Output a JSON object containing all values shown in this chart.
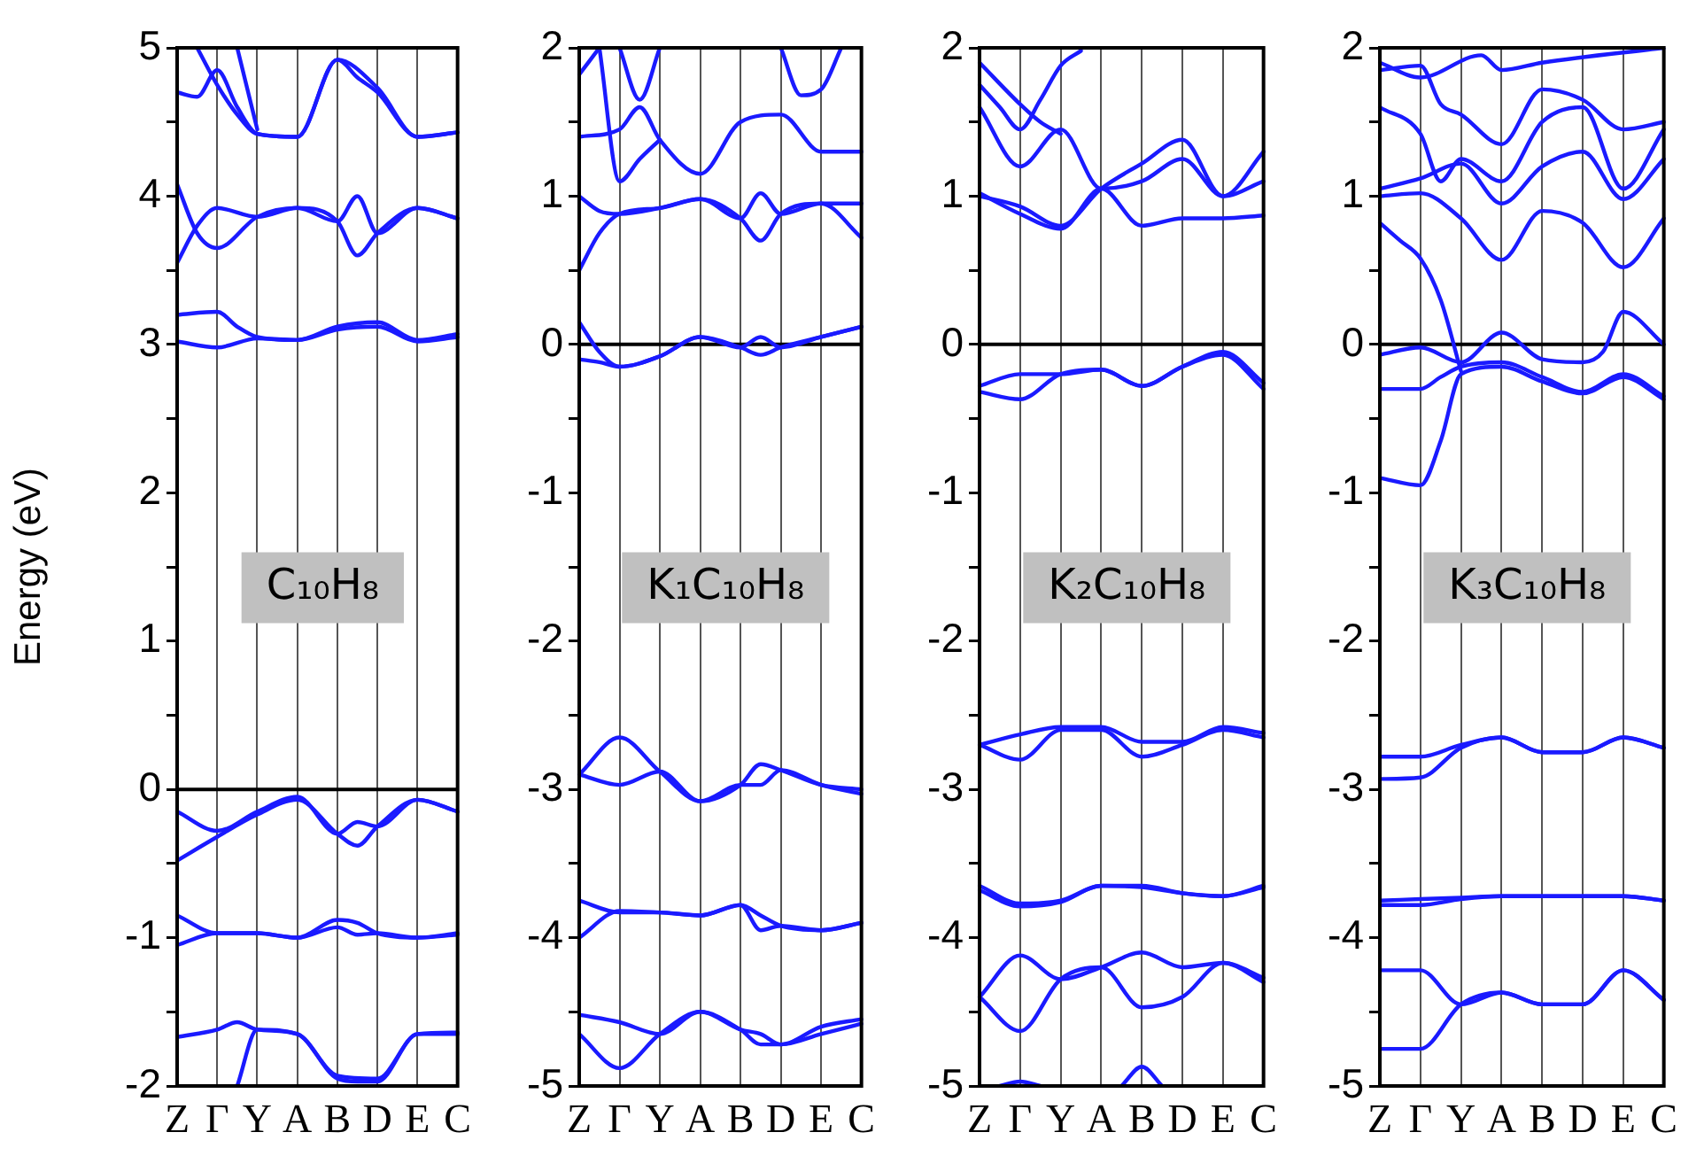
{
  "chart_data": [
    {
      "type": "line",
      "ylabel": "Energy (eV)",
      "annotations": [
        "C₁₀H₈"
      ],
      "categories": [
        "Z",
        null,
        "Γ",
        null,
        "Y",
        null,
        "A",
        null,
        "B",
        null,
        "D",
        null,
        "E",
        null,
        "C"
      ],
      "ylim": [
        -2,
        5
      ],
      "yticks": [
        -2,
        {
          "value": -1.5,
          "label": null
        },
        -1,
        {
          "value": -0.5,
          "label": null
        },
        0,
        {
          "value": 0.5,
          "label": null
        },
        1,
        {
          "value": 1.5,
          "label": null
        },
        2,
        {
          "value": 2.5,
          "label": null
        },
        3,
        {
          "value": 3.5,
          "label": null
        },
        4,
        {
          "value": 4.5,
          "label": null
        },
        5
      ],
      "grid": "x",
      "ref_lines": [
        {
          "axis": "y",
          "value": 0,
          "color": "#000000"
        }
      ],
      "series": [
        {
          "color": "#1a1aff",
          "values": [
            -0.15,
            null,
            -0.28,
            null,
            -0.15,
            null,
            -0.05,
            null,
            -0.3,
            -0.22,
            -0.25,
            null,
            -0.07,
            null,
            -0.15
          ]
        },
        {
          "color": "#1a1aff",
          "values": [
            -0.48,
            null,
            -0.32,
            null,
            -0.17,
            null,
            -0.07,
            null,
            -0.3,
            -0.38,
            -0.25,
            null,
            -0.07,
            null,
            -0.15
          ]
        },
        {
          "color": "#1a1aff",
          "values": [
            -0.85,
            null,
            -0.97,
            null,
            -0.97,
            null,
            -1.0,
            null,
            -0.88,
            -0.9,
            -0.97,
            null,
            -1.0,
            null,
            -0.97
          ]
        },
        {
          "color": "#1a1aff",
          "values": [
            -1.05,
            null,
            -0.97,
            null,
            -0.97,
            null,
            -1.0,
            null,
            -0.93,
            -0.98,
            -0.97,
            null,
            -1.0,
            null,
            -0.98
          ]
        },
        {
          "color": "#1a1aff",
          "values": [
            -1.67,
            null,
            -1.62,
            -1.57,
            -1.62,
            null,
            -1.65,
            null,
            -1.93,
            null,
            -1.95,
            null,
            -1.65,
            null,
            -1.64
          ]
        },
        {
          "color": "#1a1aff",
          "values": [
            null,
            null,
            null,
            -2.0,
            -1.62,
            null,
            -1.65,
            null,
            -1.95,
            -1.97,
            -1.97,
            null,
            -1.65,
            null,
            -1.65
          ]
        },
        {
          "color": "#1a1aff",
          "values": [
            3.2,
            null,
            3.22,
            3.12,
            3.05,
            null,
            3.03,
            null,
            3.12,
            null,
            3.15,
            null,
            3.03,
            null,
            3.07
          ]
        },
        {
          "color": "#1a1aff",
          "values": [
            3.02,
            null,
            2.98,
            null,
            3.04,
            null,
            3.03,
            null,
            3.1,
            null,
            3.12,
            null,
            3.02,
            null,
            3.05
          ]
        },
        {
          "color": "#1a1aff",
          "values": [
            4.08,
            3.75,
            3.65,
            null,
            3.86,
            null,
            3.92,
            null,
            3.83,
            4.0,
            3.75,
            null,
            3.92,
            null,
            3.85
          ]
        },
        {
          "color": "#1a1aff",
          "values": [
            3.55,
            3.8,
            3.92,
            null,
            3.86,
            null,
            3.92,
            null,
            3.83,
            3.6,
            3.75,
            null,
            3.92,
            null,
            3.85
          ]
        },
        {
          "color": "#1a1aff",
          "values": [
            4.7,
            4.67,
            4.85,
            4.6,
            4.42,
            null,
            4.4,
            null,
            4.92,
            null,
            4.73,
            null,
            4.4,
            null,
            4.43
          ]
        },
        {
          "color": "#1a1aff",
          "values": [
            null,
            5.0,
            4.75,
            4.55,
            4.42,
            null,
            4.4,
            null,
            4.92,
            4.8,
            4.7,
            null,
            4.4,
            null,
            4.43
          ]
        },
        {
          "color": "#1a1aff",
          "values": [
            null,
            null,
            null,
            5.0,
            4.45,
            null,
            null,
            null,
            null,
            null,
            null,
            null,
            null,
            null,
            null
          ]
        }
      ]
    },
    {
      "type": "line",
      "annotations": [
        "K₁C₁₀H₈"
      ],
      "categories": [
        "Z",
        null,
        "Γ",
        null,
        "Y",
        null,
        "A",
        null,
        "B",
        null,
        "D",
        null,
        "E",
        null,
        "C"
      ],
      "ylim": [
        -5,
        2
      ],
      "yticks": [
        -5,
        {
          "value": -4.5,
          "label": null
        },
        -4,
        {
          "value": -3.5,
          "label": null
        },
        -3,
        {
          "value": -2.5,
          "label": null
        },
        -2,
        {
          "value": -1.5,
          "label": null
        },
        -1,
        {
          "value": -0.5,
          "label": null
        },
        0,
        {
          "value": 0.5,
          "label": null
        },
        1,
        {
          "value": 1.5,
          "label": null
        },
        2
      ],
      "grid": "x",
      "ref_lines": [
        {
          "axis": "y",
          "value": 0,
          "color": "#000000"
        }
      ],
      "series": [
        {
          "color": "#1a1aff",
          "values": [
            0.15,
            -0.05,
            -0.15,
            null,
            -0.08,
            null,
            0.05,
            null,
            -0.02,
            -0.07,
            -0.02,
            null,
            0.05,
            null,
            0.12
          ]
        },
        {
          "color": "#1a1aff",
          "values": [
            -0.1,
            -0.12,
            -0.15,
            null,
            -0.08,
            null,
            0.05,
            null,
            -0.02,
            0.05,
            -0.02,
            null,
            0.05,
            null,
            0.12
          ]
        },
        {
          "color": "#1a1aff",
          "values": [
            -2.9,
            null,
            -2.65,
            null,
            -2.88,
            null,
            -3.08,
            null,
            -2.97,
            -2.83,
            -2.87,
            null,
            -2.97,
            null,
            -3.0
          ]
        },
        {
          "color": "#1a1aff",
          "values": [
            -2.9,
            null,
            -2.97,
            null,
            -2.88,
            null,
            -3.08,
            null,
            -2.97,
            -2.97,
            -2.87,
            null,
            -2.97,
            null,
            -3.03
          ]
        },
        {
          "color": "#1a1aff",
          "values": [
            -3.75,
            null,
            -3.83,
            null,
            -3.83,
            null,
            -3.85,
            null,
            -3.78,
            -3.95,
            -3.92,
            null,
            -3.95,
            null,
            -3.9
          ]
        },
        {
          "color": "#1a1aff",
          "values": [
            -4.0,
            null,
            -3.82,
            null,
            -3.83,
            null,
            -3.85,
            null,
            -3.78,
            -3.85,
            -3.92,
            null,
            -3.95,
            null,
            -3.9
          ]
        },
        {
          "color": "#1a1aff",
          "values": [
            -4.52,
            null,
            -4.57,
            null,
            -4.65,
            null,
            -4.5,
            null,
            -4.62,
            -4.65,
            -4.72,
            null,
            -4.6,
            null,
            -4.55
          ]
        },
        {
          "color": "#1a1aff",
          "values": [
            -4.65,
            null,
            -4.88,
            null,
            -4.65,
            null,
            -4.5,
            null,
            -4.62,
            -4.72,
            -4.72,
            null,
            -4.65,
            null,
            -4.58
          ]
        },
        {
          "color": "#1a1aff",
          "values": [
            0.5,
            0.75,
            0.88,
            null,
            0.92,
            null,
            0.98,
            null,
            0.85,
            0.7,
            0.88,
            null,
            0.95,
            null,
            0.72
          ]
        },
        {
          "color": "#1a1aff",
          "values": [
            1.0,
            0.9,
            0.88,
            null,
            0.92,
            null,
            0.98,
            null,
            0.85,
            1.02,
            0.88,
            null,
            0.95,
            null,
            0.95
          ]
        },
        {
          "color": "#1a1aff",
          "values": [
            1.4,
            null,
            1.45,
            1.6,
            1.38,
            null,
            1.15,
            null,
            1.5,
            null,
            1.55,
            null,
            1.3,
            null,
            1.3
          ]
        },
        {
          "color": "#1a1aff",
          "values": [
            1.82,
            2.0,
            null,
            null,
            null,
            null,
            null,
            null,
            null,
            null,
            null,
            null,
            null,
            null,
            null
          ]
        },
        {
          "color": "#1a1aff",
          "values": [
            null,
            null,
            2.0,
            1.65,
            2.0,
            null,
            null,
            null,
            null,
            null,
            null,
            null,
            null,
            null,
            null
          ]
        },
        {
          "color": "#1a1aff",
          "values": [
            null,
            2.0,
            1.1,
            1.25,
            1.38,
            null,
            null,
            null,
            null,
            null,
            null,
            null,
            null,
            null,
            null
          ]
        },
        {
          "color": "#1a1aff",
          "values": [
            null,
            null,
            null,
            null,
            null,
            null,
            null,
            null,
            null,
            null,
            2.0,
            1.68,
            1.72,
            2.0,
            null
          ]
        }
      ]
    },
    {
      "type": "line",
      "annotations": [
        "K₂C₁₀H₈"
      ],
      "categories": [
        "Z",
        null,
        "Γ",
        null,
        "Y",
        null,
        "A",
        null,
        "B",
        null,
        "D",
        null,
        "E",
        null,
        "C"
      ],
      "ylim": [
        -5,
        2
      ],
      "yticks": [
        -5,
        {
          "value": -4.5,
          "label": null
        },
        -4,
        {
          "value": -3.5,
          "label": null
        },
        -3,
        {
          "value": -2.5,
          "label": null
        },
        -2,
        {
          "value": -1.5,
          "label": null
        },
        -1,
        {
          "value": -0.5,
          "label": null
        },
        0,
        {
          "value": 0.5,
          "label": null
        },
        1,
        {
          "value": 1.5,
          "label": null
        },
        2
      ],
      "grid": "x",
      "ref_lines": [
        {
          "axis": "y",
          "value": 0,
          "color": "#000000"
        }
      ],
      "series": [
        {
          "color": "#1a1aff",
          "values": [
            -0.28,
            null,
            -0.2,
            null,
            -0.2,
            null,
            -0.17,
            null,
            -0.28,
            null,
            -0.15,
            null,
            -0.05,
            null,
            -0.26
          ]
        },
        {
          "color": "#1a1aff",
          "values": [
            -0.32,
            null,
            -0.37,
            null,
            -0.2,
            null,
            -0.17,
            null,
            -0.28,
            null,
            -0.15,
            null,
            -0.07,
            null,
            -0.3
          ]
        },
        {
          "color": "#1a1aff",
          "values": [
            -2.7,
            null,
            -2.63,
            null,
            -2.58,
            null,
            -2.58,
            null,
            -2.68,
            null,
            -2.68,
            null,
            -2.58,
            null,
            -2.62
          ]
        },
        {
          "color": "#1a1aff",
          "values": [
            -2.7,
            null,
            -2.8,
            null,
            -2.6,
            null,
            -2.6,
            null,
            -2.78,
            null,
            -2.7,
            null,
            -2.6,
            null,
            -2.65
          ]
        },
        {
          "color": "#1a1aff",
          "values": [
            -3.65,
            null,
            -3.77,
            null,
            -3.75,
            null,
            -3.65,
            null,
            -3.65,
            null,
            -3.7,
            null,
            -3.72,
            null,
            -3.65
          ]
        },
        {
          "color": "#1a1aff",
          "values": [
            -3.68,
            null,
            -3.79,
            null,
            -3.76,
            null,
            -3.65,
            null,
            -3.66,
            null,
            -3.7,
            null,
            -3.72,
            null,
            -3.66
          ]
        },
        {
          "color": "#1a1aff",
          "values": [
            -4.4,
            null,
            -4.12,
            null,
            -4.28,
            null,
            -4.2,
            null,
            -4.1,
            null,
            -4.2,
            null,
            -4.17,
            null,
            -4.27
          ]
        },
        {
          "color": "#1a1aff",
          "values": [
            -4.4,
            null,
            -4.63,
            null,
            -4.28,
            null,
            -4.2,
            null,
            -4.47,
            null,
            -4.4,
            null,
            -4.17,
            null,
            -4.3
          ]
        },
        {
          "color": "#1a1aff",
          "values": [
            null,
            -5.0,
            -4.97,
            -5.0,
            null,
            null,
            null,
            null,
            null,
            null,
            null,
            null,
            null,
            null,
            null
          ]
        },
        {
          "color": "#1a1aff",
          "values": [
            null,
            null,
            null,
            null,
            null,
            null,
            null,
            -5.0,
            -4.87,
            -5.0,
            null,
            null,
            null,
            null,
            null
          ]
        },
        {
          "color": "#1a1aff",
          "values": [
            1.02,
            null,
            0.88,
            null,
            0.78,
            null,
            1.05,
            null,
            0.8,
            null,
            0.85,
            null,
            0.85,
            null,
            0.87
          ]
        },
        {
          "color": "#1a1aff",
          "values": [
            1.0,
            null,
            0.93,
            null,
            0.8,
            null,
            1.05,
            null,
            1.22,
            null,
            1.38,
            null,
            1.0,
            null,
            1.3
          ]
        },
        {
          "color": "#1a1aff",
          "values": [
            1.6,
            null,
            1.2,
            null,
            1.45,
            null,
            1.05,
            null,
            1.1,
            null,
            1.25,
            null,
            1.0,
            null,
            1.1
          ]
        },
        {
          "color": "#1a1aff",
          "values": [
            1.75,
            1.6,
            1.45,
            1.65,
            1.88,
            1.98,
            null,
            null,
            null,
            null,
            null,
            null,
            null,
            null,
            null
          ]
        },
        {
          "color": "#1a1aff",
          "values": [
            1.9,
            null,
            1.62,
            1.5,
            1.42,
            null,
            null,
            null,
            null,
            null,
            null,
            null,
            null,
            null,
            null
          ]
        }
      ]
    },
    {
      "type": "line",
      "annotations": [
        "K₃C₁₀H₈"
      ],
      "categories": [
        "Z",
        null,
        "Γ",
        null,
        "Y",
        null,
        "A",
        null,
        "B",
        null,
        "D",
        null,
        "E",
        null,
        "C"
      ],
      "ylim": [
        -5,
        2
      ],
      "yticks": [
        -5,
        {
          "value": -4.5,
          "label": null
        },
        -4,
        {
          "value": -3.5,
          "label": null
        },
        -3,
        {
          "value": -2.5,
          "label": null
        },
        -2,
        {
          "value": -1.5,
          "label": null
        },
        -1,
        {
          "value": -0.5,
          "label": null
        },
        0,
        {
          "value": 0.5,
          "label": null
        },
        1,
        {
          "value": 1.5,
          "label": null
        },
        2
      ],
      "grid": "x",
      "ref_lines": [
        {
          "axis": "y",
          "value": 0,
          "color": "#000000"
        }
      ],
      "series": [
        {
          "color": "#1a1aff",
          "values": [
            -0.07,
            null,
            -0.02,
            null,
            -0.12,
            null,
            0.08,
            null,
            -0.1,
            null,
            -0.12,
            -0.05,
            0.22,
            null,
            0.0
          ]
        },
        {
          "color": "#1a1aff",
          "values": [
            -0.3,
            null,
            -0.3,
            -0.22,
            -0.15,
            null,
            -0.12,
            null,
            -0.22,
            null,
            -0.32,
            null,
            -0.2,
            null,
            -0.35
          ]
        },
        {
          "color": "#1a1aff",
          "values": [
            -0.9,
            null,
            -0.95,
            -0.65,
            -0.2,
            null,
            -0.15,
            null,
            -0.25,
            null,
            -0.33,
            null,
            -0.22,
            null,
            -0.37
          ]
        },
        {
          "color": "#1a1aff",
          "values": [
            0.82,
            0.7,
            0.58,
            0.3,
            -0.18,
            null,
            null,
            null,
            null,
            null,
            null,
            null,
            null,
            null,
            null
          ]
        },
        {
          "color": "#1a1aff",
          "values": [
            -2.78,
            null,
            -2.78,
            null,
            -2.7,
            null,
            -2.65,
            null,
            -2.75,
            null,
            -2.75,
            null,
            -2.65,
            null,
            -2.72
          ]
        },
        {
          "color": "#1a1aff",
          "values": [
            -2.93,
            null,
            -2.92,
            null,
            -2.72,
            null,
            -2.65,
            null,
            -2.75,
            null,
            -2.75,
            null,
            -2.65,
            null,
            -2.72
          ]
        },
        {
          "color": "#1a1aff",
          "values": [
            -3.75,
            null,
            -3.74,
            null,
            -3.73,
            null,
            -3.72,
            null,
            -3.72,
            null,
            -3.72,
            null,
            -3.72,
            null,
            -3.75
          ]
        },
        {
          "color": "#1a1aff",
          "values": [
            -3.78,
            null,
            -3.78,
            null,
            -3.74,
            null,
            -3.72,
            null,
            -3.72,
            null,
            -3.72,
            null,
            -3.72,
            null,
            -3.75
          ]
        },
        {
          "color": "#1a1aff",
          "values": [
            -4.22,
            null,
            -4.22,
            null,
            -4.45,
            null,
            -4.37,
            null,
            -4.45,
            null,
            -4.45,
            null,
            -4.22,
            null,
            -4.42
          ]
        },
        {
          "color": "#1a1aff",
          "values": [
            -4.75,
            null,
            -4.75,
            null,
            -4.45,
            null,
            -4.37,
            null,
            -4.45,
            null,
            -4.45,
            null,
            -4.22,
            null,
            -4.42
          ]
        },
        {
          "color": "#1a1aff",
          "values": [
            1.0,
            null,
            1.02,
            null,
            0.85,
            null,
            0.57,
            null,
            0.9,
            null,
            0.82,
            null,
            0.52,
            null,
            0.85
          ]
        },
        {
          "color": "#1a1aff",
          "values": [
            1.05,
            null,
            1.12,
            null,
            1.22,
            null,
            0.95,
            null,
            1.2,
            null,
            1.3,
            null,
            0.98,
            null,
            1.25
          ]
        },
        {
          "color": "#1a1aff",
          "values": [
            1.6,
            null,
            1.42,
            1.1,
            1.25,
            null,
            1.1,
            null,
            1.5,
            null,
            1.6,
            null,
            1.05,
            null,
            1.45
          ]
        },
        {
          "color": "#1a1aff",
          "values": [
            1.85,
            null,
            1.88,
            1.62,
            1.55,
            null,
            1.35,
            null,
            1.72,
            null,
            1.65,
            null,
            1.45,
            null,
            1.5
          ]
        },
        {
          "color": "#1a1aff",
          "values": [
            1.9,
            null,
            1.8,
            null,
            null,
            1.95,
            1.85,
            null,
            1.9,
            null,
            null,
            null,
            null,
            null,
            2.0
          ]
        }
      ]
    }
  ]
}
